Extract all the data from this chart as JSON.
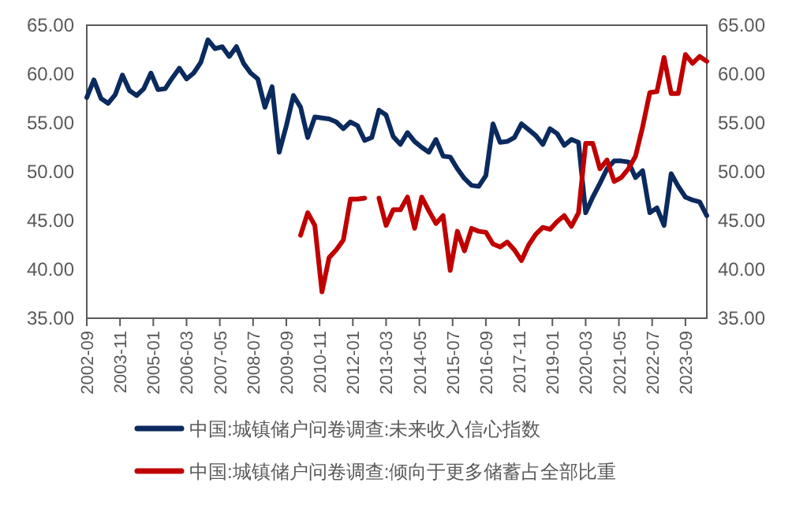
{
  "chart_data": {
    "type": "line",
    "x": [
      "2002-09",
      "2002-12",
      "2003-03",
      "2003-06",
      "2003-09",
      "2003-12",
      "2004-03",
      "2004-06",
      "2004-09",
      "2004-12",
      "2005-03",
      "2005-06",
      "2005-09",
      "2005-12",
      "2006-03",
      "2006-06",
      "2006-09",
      "2006-12",
      "2007-03",
      "2007-06",
      "2007-09",
      "2007-12",
      "2008-03",
      "2008-06",
      "2008-09",
      "2008-12",
      "2009-03",
      "2009-06",
      "2009-09",
      "2009-12",
      "2010-03",
      "2010-06",
      "2010-09",
      "2010-12",
      "2011-03",
      "2011-06",
      "2011-09",
      "2011-12",
      "2012-03",
      "2012-06",
      "2012-09",
      "2012-12",
      "2013-03",
      "2013-06",
      "2013-09",
      "2013-12",
      "2014-03",
      "2014-06",
      "2014-09",
      "2014-12",
      "2015-03",
      "2015-06",
      "2015-09",
      "2015-12",
      "2016-03",
      "2016-06",
      "2016-09",
      "2016-12",
      "2017-03",
      "2017-06",
      "2017-09",
      "2017-12",
      "2018-03",
      "2018-06",
      "2018-09",
      "2018-12",
      "2019-03",
      "2019-06",
      "2019-09",
      "2019-12",
      "2020-03",
      "2020-06",
      "2020-09",
      "2020-12",
      "2021-03",
      "2021-06",
      "2021-09",
      "2021-12",
      "2022-03",
      "2022-06",
      "2022-09",
      "2022-12",
      "2023-03",
      "2023-06",
      "2023-09",
      "2023-12",
      "2024-03",
      "2024-06"
    ],
    "series": [
      {
        "name": "中国:城镇储户问卷调查:未来收入信心指数",
        "color": "#0b2a5e",
        "values": [
          57.6,
          59.4,
          57.5,
          57.0,
          57.9,
          59.9,
          58.3,
          57.8,
          58.5,
          60.1,
          58.4,
          58.5,
          59.6,
          60.6,
          59.5,
          60.1,
          61.2,
          63.5,
          62.6,
          62.8,
          61.8,
          62.8,
          61.1,
          60.1,
          59.5,
          56.6,
          58.7,
          52.0,
          54.7,
          57.8,
          56.6,
          53.5,
          55.6,
          55.5,
          55.4,
          55.1,
          54.4,
          55.1,
          54.7,
          53.2,
          53.5,
          56.3,
          55.8,
          53.6,
          52.8,
          54.0,
          53.1,
          52.5,
          52.0,
          53.3,
          51.6,
          51.5,
          50.3,
          49.3,
          48.6,
          48.5,
          49.6,
          54.9,
          53.0,
          53.1,
          53.5,
          54.9,
          54.3,
          53.7,
          52.8,
          54.4,
          53.9,
          52.7,
          53.3,
          53.0,
          45.8,
          47.4,
          48.8,
          50.3,
          51.1,
          51.1,
          51.0,
          49.4,
          50.1,
          45.8,
          46.3,
          44.5,
          49.8,
          48.5,
          47.4,
          47.1,
          46.9,
          45.5
        ]
      },
      {
        "name": "中国:城镇储户问卷调查:倾向于更多储蓄占全部比重",
        "color": "#c00000",
        "values": [
          null,
          null,
          null,
          null,
          null,
          null,
          null,
          null,
          null,
          null,
          null,
          null,
          null,
          null,
          null,
          null,
          null,
          null,
          null,
          null,
          null,
          null,
          null,
          null,
          null,
          null,
          null,
          null,
          null,
          null,
          43.5,
          45.8,
          44.5,
          37.7,
          41.2,
          42.0,
          43.0,
          47.2,
          47.2,
          47.3,
          null,
          47.3,
          44.5,
          46.1,
          46.1,
          47.4,
          44.2,
          47.4,
          46.0,
          44.7,
          45.5,
          39.9,
          43.9,
          41.9,
          44.2,
          43.9,
          43.8,
          42.6,
          42.3,
          42.8,
          42.0,
          40.9,
          42.5,
          43.6,
          44.3,
          44.1,
          44.9,
          45.5,
          44.4,
          45.8,
          52.9,
          52.9,
          50.3,
          51.2,
          49.0,
          49.4,
          50.3,
          51.6,
          54.6,
          58.1,
          58.2,
          61.7,
          58.0,
          58.0,
          62.0,
          61.1,
          61.8,
          61.3
        ]
      }
    ],
    "xlim": [
      "2002-09",
      "2024-06"
    ],
    "xticks": [
      "2002-09",
      "2003-11",
      "2005-01",
      "2006-03",
      "2007-05",
      "2008-07",
      "2009-09",
      "2010-11",
      "2012-01",
      "2013-03",
      "2014-05",
      "2015-07",
      "2016-09",
      "2017-11",
      "2019-01",
      "2020-03",
      "2021-05",
      "2022-07",
      "2023-09"
    ],
    "ylim": [
      35,
      65
    ],
    "yticks": [
      {
        "value": 35,
        "label": "35.00"
      },
      {
        "value": 40,
        "label": "40.00"
      },
      {
        "value": 45,
        "label": "45.00"
      },
      {
        "value": 50,
        "label": "50.00"
      },
      {
        "value": 55,
        "label": "55.00"
      },
      {
        "value": 60,
        "label": "60.00"
      },
      {
        "value": 65,
        "label": "65.00"
      }
    ],
    "y2lim": [
      35,
      65
    ],
    "y2ticks": [
      {
        "value": 35,
        "label": "35.00"
      },
      {
        "value": 40,
        "label": "40.00"
      },
      {
        "value": 45,
        "label": "45.00"
      },
      {
        "value": 50,
        "label": "50.00"
      },
      {
        "value": 55,
        "label": "55.00"
      },
      {
        "value": 60,
        "label": "60.00"
      },
      {
        "value": 65,
        "label": "65.00"
      }
    ],
    "grid": false,
    "legend": "bottom",
    "marker": "none",
    "line_style": "solid"
  }
}
